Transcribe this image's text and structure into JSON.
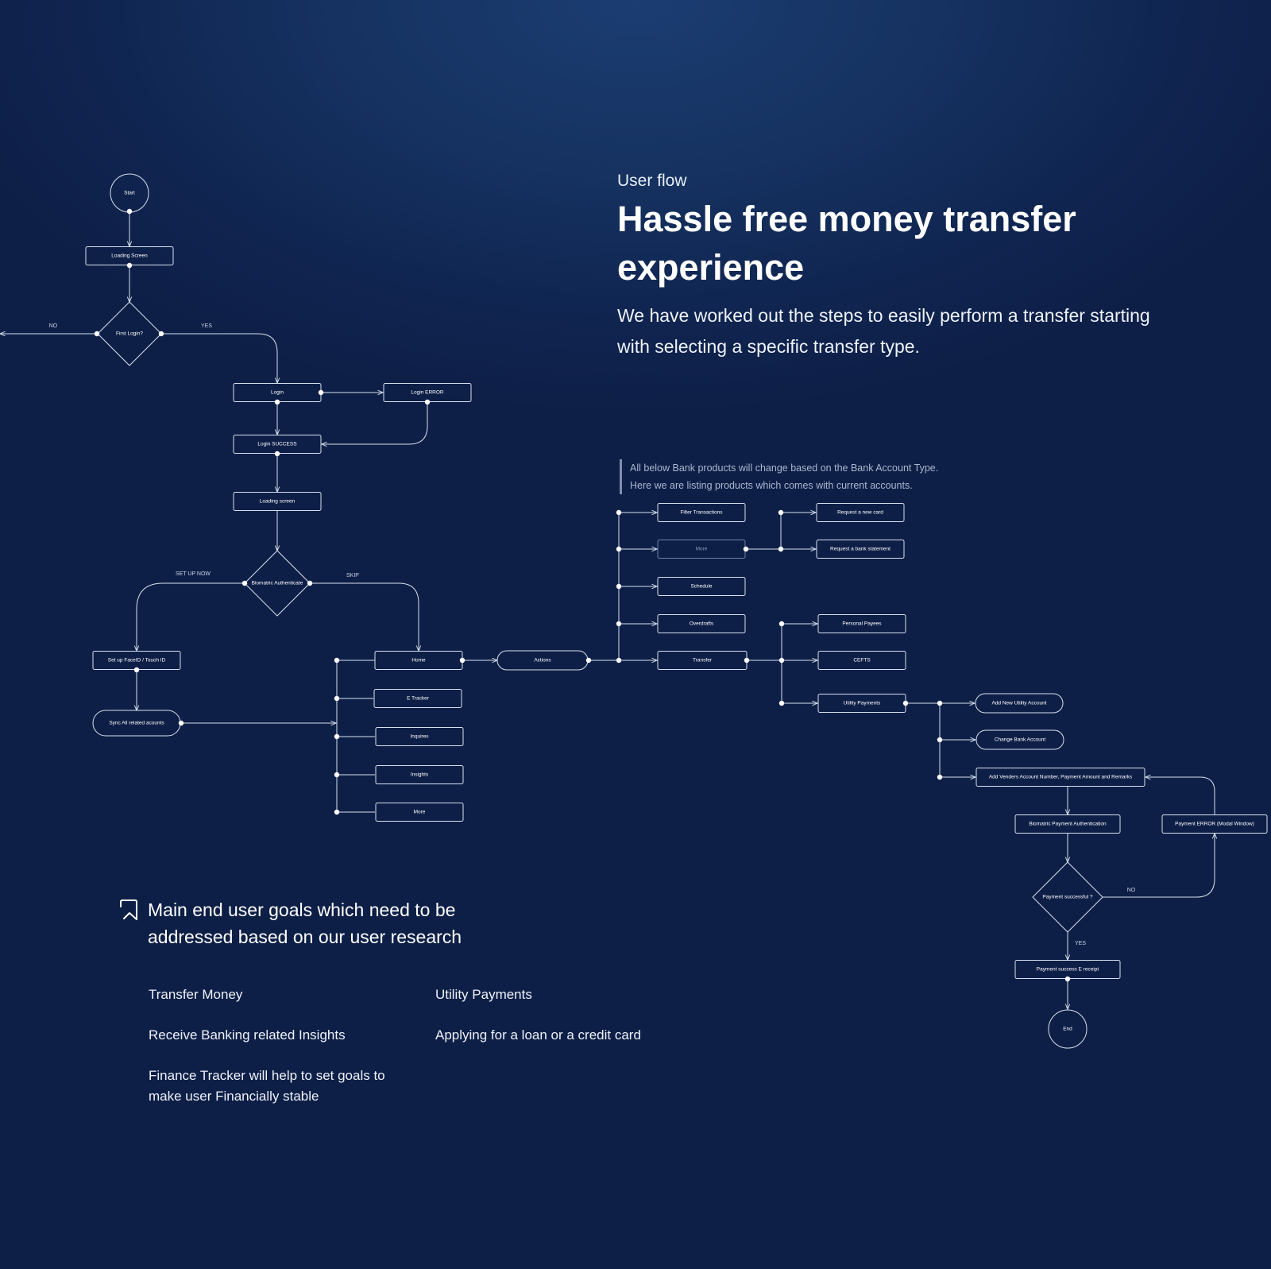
{
  "header": {
    "eyebrow": "User flow",
    "headline": "Hassle free money transfer experience",
    "lead": "We have worked out the steps to easily perform a transfer starting with selecting a specific transfer type."
  },
  "note": {
    "line1": "All below Bank products will change based on the Bank Account Type.",
    "line2": "Here we are listing products which comes with current accounts."
  },
  "goals": {
    "title": "Main end user goals which need to be addressed based on our user research",
    "items": [
      "Transfer Money",
      "Utility Payments",
      "Receive Banking related Insights",
      "Applying for a loan or a credit card",
      "Finance Tracker will help to set goals to make user Financially stable"
    ]
  },
  "flow": {
    "nodes": [
      {
        "id": "start",
        "label": "Start",
        "shape": "circle"
      },
      {
        "id": "loading_screen",
        "label": "Loading Screen",
        "shape": "rect"
      },
      {
        "id": "first_login",
        "label": "First Login?",
        "shape": "diamond"
      },
      {
        "id": "login",
        "label": "Login",
        "shape": "rect"
      },
      {
        "id": "login_error",
        "label": "Login ERROR",
        "shape": "rect"
      },
      {
        "id": "login_success",
        "label": "Login SUCCESS",
        "shape": "rect"
      },
      {
        "id": "loading_screen_2",
        "label": "Loading screen",
        "shape": "rect"
      },
      {
        "id": "biometric_auth",
        "label": "Biomatric Authenticate",
        "shape": "diamond"
      },
      {
        "id": "setup_faceid",
        "label": "Set up FaceID / Touch ID",
        "shape": "rect"
      },
      {
        "id": "sync_accounts",
        "label": "Sync All related acounts",
        "shape": "pill"
      },
      {
        "id": "home",
        "label": "Home",
        "shape": "rect"
      },
      {
        "id": "e_tracker",
        "label": "E Tracker",
        "shape": "rect"
      },
      {
        "id": "inquires",
        "label": "Inquires",
        "shape": "rect"
      },
      {
        "id": "insights",
        "label": "Insights",
        "shape": "rect"
      },
      {
        "id": "more_home",
        "label": "More",
        "shape": "rect"
      },
      {
        "id": "actions",
        "label": "Actions",
        "shape": "pill"
      },
      {
        "id": "filter_transactions",
        "label": "Filter Transactions",
        "shape": "rect"
      },
      {
        "id": "more_actions",
        "label": "More",
        "shape": "rect",
        "muted": true
      },
      {
        "id": "schedule",
        "label": "Schedule",
        "shape": "rect"
      },
      {
        "id": "overdrafts",
        "label": "Overdrafts",
        "shape": "rect"
      },
      {
        "id": "transfer",
        "label": "Transfer",
        "shape": "rect"
      },
      {
        "id": "request_card",
        "label": "Request a new card",
        "shape": "rect"
      },
      {
        "id": "request_statement",
        "label": "Request a bank statement",
        "shape": "rect"
      },
      {
        "id": "personal_payees",
        "label": "Personal Payees",
        "shape": "rect"
      },
      {
        "id": "cefts",
        "label": "CEFTS",
        "shape": "rect"
      },
      {
        "id": "utility_payments",
        "label": "Utility Payments",
        "shape": "rect"
      },
      {
        "id": "add_utility_account",
        "label": "Add New Utility Account",
        "shape": "pill"
      },
      {
        "id": "change_bank_account",
        "label": "Change Bank Account",
        "shape": "pill"
      },
      {
        "id": "add_vendor_details",
        "label": "Add Venders Account Number, Payment Amount and Remarks",
        "shape": "rect"
      },
      {
        "id": "biometric_payment_auth",
        "label": "Biomatric Payment Authentication",
        "shape": "rect"
      },
      {
        "id": "payment_error",
        "label": "Payment ERROR (Modal Window)",
        "shape": "rect"
      },
      {
        "id": "payment_successful",
        "label": "Payment successful ?",
        "shape": "diamond"
      },
      {
        "id": "payment_receipt",
        "label": "Payment success E receipt",
        "shape": "rect"
      },
      {
        "id": "end",
        "label": "End",
        "shape": "circle"
      }
    ],
    "edge_labels": {
      "no": "NO",
      "yes": "YES",
      "setup_now": "SET UP NOW",
      "skip": "SKIP"
    }
  },
  "colors": {
    "background": "#12295a",
    "stroke": "#d7e0ee",
    "muted": "#8a9bbd"
  },
  "icons": {
    "goals": "bookmark-icon"
  }
}
